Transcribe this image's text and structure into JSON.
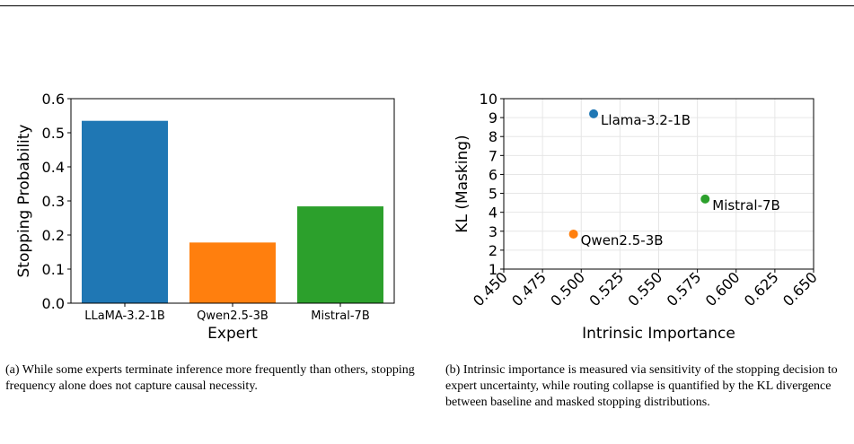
{
  "chart_data": [
    {
      "type": "bar",
      "categories": [
        "LLaMA-3.2-1B",
        "Qwen2.5-3B",
        "Mistral-7B"
      ],
      "values": [
        0.535,
        0.178,
        0.284
      ],
      "colors": [
        "#1f77b4",
        "#ff7f0e",
        "#2ca02c"
      ],
      "xlabel": "Expert",
      "ylabel": "Stopping Probability",
      "ylim": [
        0,
        0.6
      ],
      "yticks": [
        "0.0",
        "0.1",
        "0.2",
        "0.3",
        "0.4",
        "0.5",
        "0.6"
      ],
      "grid": false
    },
    {
      "type": "scatter",
      "points": [
        {
          "label": "Llama-3.2-1B",
          "x": 0.508,
          "y": 9.2,
          "color": "#1f77b4"
        },
        {
          "label": "Qwen2.5-3B",
          "x": 0.495,
          "y": 2.85,
          "color": "#ff7f0e"
        },
        {
          "label": "Mistral-7B",
          "x": 0.58,
          "y": 4.7,
          "color": "#2ca02c"
        }
      ],
      "xlabel": "Intrinsic Importance",
      "ylabel": "KL (Masking)",
      "xlim": [
        0.45,
        0.65
      ],
      "ylim": [
        1,
        10
      ],
      "xticks": [
        "0.450",
        "0.475",
        "0.500",
        "0.525",
        "0.550",
        "0.575",
        "0.600",
        "0.625",
        "0.650"
      ],
      "yticks": [
        "1",
        "2",
        "3",
        "4",
        "5",
        "6",
        "7",
        "8",
        "9",
        "10"
      ],
      "grid": true
    }
  ],
  "captions": {
    "a": "(a) While some experts terminate inference more frequently than others, stopping frequency alone does not capture causal necessity.",
    "b": "(b) Intrinsic importance is measured via sensitivity of the stopping decision to expert uncertainty, while routing collapse is quantified by the KL divergence between baseline and masked stopping distributions."
  }
}
